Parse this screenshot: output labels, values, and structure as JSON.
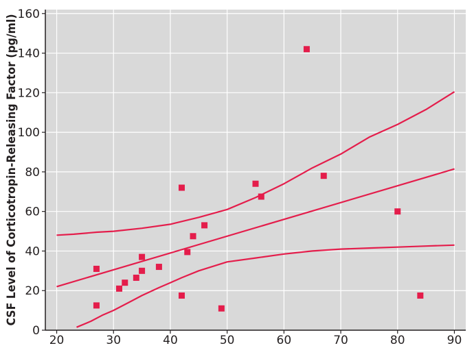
{
  "chart_data": {
    "type": "scatter",
    "title": "",
    "xlabel": "",
    "ylabel": "CSF Level of Corticotropin-Releasing Factor (pg/ml)",
    "xlim": [
      18,
      92
    ],
    "ylim": [
      0,
      162
    ],
    "x_ticks": [
      20,
      30,
      40,
      50,
      60,
      70,
      80,
      90
    ],
    "y_ticks": [
      0,
      20,
      40,
      60,
      80,
      100,
      120,
      140,
      160
    ],
    "grid": true,
    "legend": "none",
    "colors": {
      "background": "#d9d9d9",
      "grid": "#ffffff",
      "series": "#e41d4b",
      "axis": "#231f20"
    },
    "points": [
      {
        "x": 27,
        "y": 31
      },
      {
        "x": 27,
        "y": 12.5
      },
      {
        "x": 31,
        "y": 21
      },
      {
        "x": 32,
        "y": 24
      },
      {
        "x": 34,
        "y": 26.5
      },
      {
        "x": 35,
        "y": 37
      },
      {
        "x": 35,
        "y": 30
      },
      {
        "x": 38,
        "y": 32
      },
      {
        "x": 42,
        "y": 72
      },
      {
        "x": 42,
        "y": 17.5
      },
      {
        "x": 43,
        "y": 39.5
      },
      {
        "x": 44,
        "y": 47.5
      },
      {
        "x": 46,
        "y": 53
      },
      {
        "x": 49,
        "y": 11
      },
      {
        "x": 55,
        "y": 74
      },
      {
        "x": 56,
        "y": 67.5
      },
      {
        "x": 64,
        "y": 142
      },
      {
        "x": 67,
        "y": 78
      },
      {
        "x": 80,
        "y": 60
      },
      {
        "x": 84,
        "y": 17.5
      }
    ],
    "lines": [
      {
        "role": "regression",
        "x": [
          20,
          90
        ],
        "y": [
          22,
          81.5
        ]
      },
      {
        "role": "upper-band",
        "x": [
          20,
          23,
          27,
          30,
          35,
          40,
          45,
          50,
          55,
          60,
          65,
          70,
          75,
          80,
          85,
          90
        ],
        "y": [
          48,
          48.5,
          49.5,
          50,
          51.5,
          53.5,
          57,
          61,
          67,
          74,
          82,
          89,
          97.5,
          104,
          111.5,
          120.5
        ]
      },
      {
        "role": "lower-band",
        "x": [
          23.5,
          26,
          28,
          30,
          33,
          35,
          38,
          40,
          42,
          45,
          50,
          55,
          60,
          65,
          70,
          75,
          80,
          85,
          90
        ],
        "y": [
          1.5,
          4.5,
          7.5,
          10,
          14.5,
          17.5,
          21.5,
          24,
          26.5,
          30,
          34.5,
          36.5,
          38.5,
          40,
          41,
          41.5,
          42,
          42.5,
          43
        ]
      }
    ]
  }
}
